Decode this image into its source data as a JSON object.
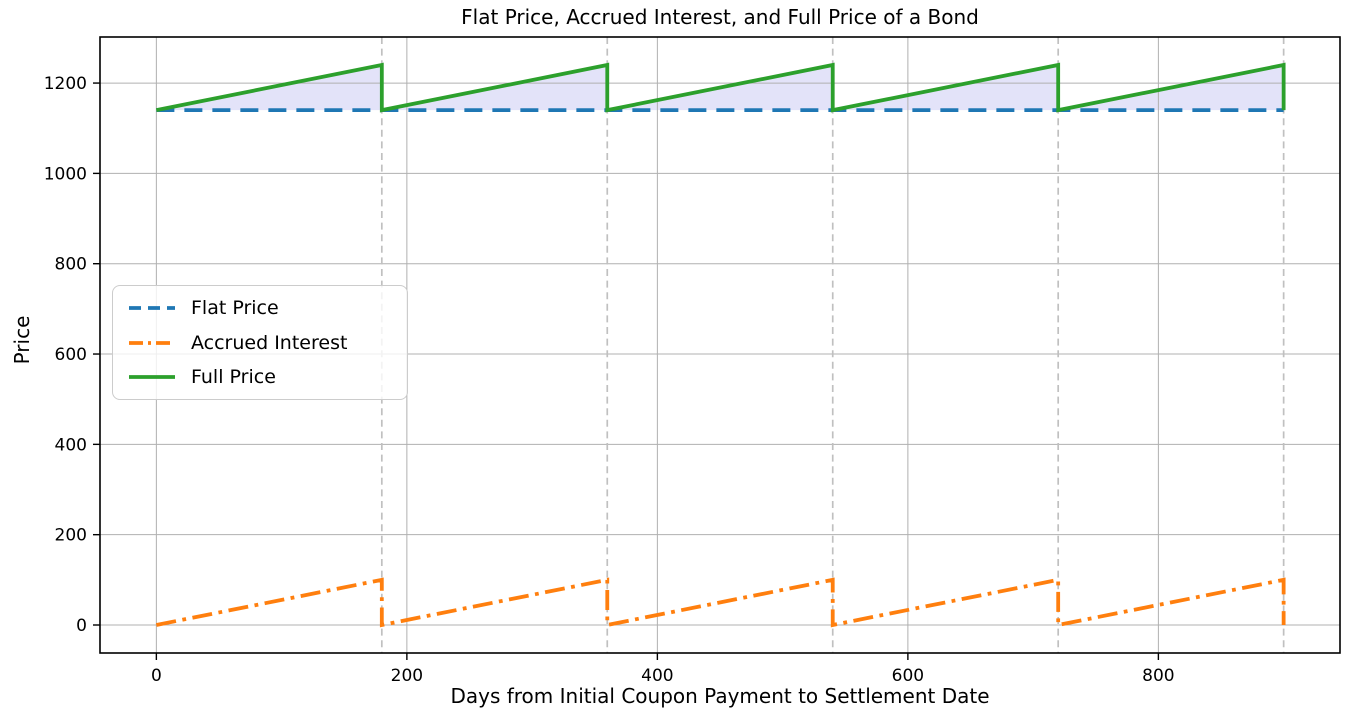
{
  "chart_data": {
    "type": "line",
    "title": "Flat Price, Accrued Interest, and Full Price of a Bond",
    "xlabel": "Days from Initial Coupon Payment to Settlement Date",
    "ylabel": "Price",
    "xlim": [
      -45,
      945
    ],
    "ylim": [
      -62,
      1302
    ],
    "x_ticks": [
      0,
      200,
      400,
      600,
      800
    ],
    "y_ticks": [
      0,
      200,
      400,
      600,
      800,
      1000,
      1200
    ],
    "grid": true,
    "flat_price": 1140,
    "coupon_amount": 100,
    "full_price_peak": 1240,
    "coupon_period_days": 180,
    "coupon_dates": [
      180,
      360,
      540,
      720,
      900
    ],
    "x_range_days": [
      0,
      900
    ],
    "series": [
      {
        "name": "Flat Price",
        "color": "#1f77b4",
        "style": "dashed",
        "points": [
          [
            0,
            1140
          ],
          [
            900,
            1140
          ]
        ]
      },
      {
        "name": "Accrued Interest",
        "color": "#ff7f0e",
        "style": "dashdot",
        "points": [
          [
            0,
            0
          ],
          [
            180,
            100
          ],
          [
            180,
            0
          ],
          [
            360,
            100
          ],
          [
            360,
            0
          ],
          [
            540,
            100
          ],
          [
            540,
            0
          ],
          [
            720,
            100
          ],
          [
            720,
            0
          ],
          [
            900,
            100
          ],
          [
            900,
            0
          ]
        ]
      },
      {
        "name": "Full Price",
        "color": "#2ca02c",
        "style": "solid",
        "points": [
          [
            0,
            1140
          ],
          [
            180,
            1240
          ],
          [
            180,
            1140
          ],
          [
            360,
            1240
          ],
          [
            360,
            1140
          ],
          [
            540,
            1240
          ],
          [
            540,
            1140
          ],
          [
            720,
            1240
          ],
          [
            720,
            1140
          ],
          [
            900,
            1240
          ],
          [
            900,
            1140
          ]
        ]
      }
    ],
    "fill_between": {
      "upper": "Full Price",
      "lower": "Flat Price",
      "color": "#e3e3f9"
    },
    "vlines": {
      "x": [
        180,
        360,
        540,
        720,
        900
      ],
      "color": "#c0c0c0",
      "style": "dashed"
    },
    "legend": {
      "position": "center-left",
      "entries": [
        "Flat Price",
        "Accrued Interest",
        "Full Price"
      ]
    },
    "axis_colors": {
      "frame": "#000000",
      "grid": "#b0b0b0",
      "tick_label": "#000000"
    }
  }
}
